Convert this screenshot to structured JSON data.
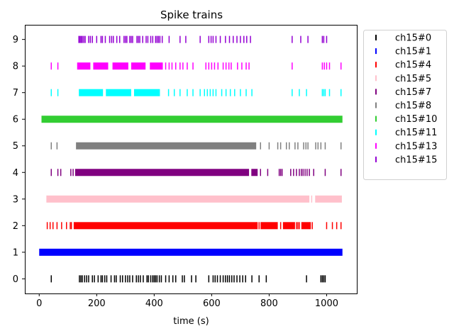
{
  "chart_data": {
    "type": "scatter",
    "title": "Spike trains",
    "xlabel": "time (s)",
    "ylabel": "",
    "xlim": [
      -50,
      1105
    ],
    "ylim": [
      -0.55,
      9.55
    ],
    "xticks": [
      0,
      200,
      400,
      600,
      800,
      1000
    ],
    "yticks": [
      0,
      1,
      2,
      3,
      4,
      5,
      6,
      7,
      8,
      9
    ],
    "grid": false,
    "legend_position": "outside-right",
    "series": [
      {
        "name": "ch15#0",
        "y": 0,
        "color": "#000000",
        "spikes": [
          42,
          140,
          145,
          150,
          158,
          165,
          172,
          185,
          192,
          205,
          215,
          220,
          228,
          235,
          250,
          262,
          268,
          282,
          290,
          300,
          308,
          315,
          325,
          338,
          345,
          352,
          362,
          375,
          380,
          388,
          395,
          400,
          405,
          410,
          418,
          425,
          440,
          452,
          465,
          475,
          498,
          505,
          530,
          545,
          590,
          605,
          612,
          620,
          630,
          640,
          648,
          655,
          662,
          670,
          678,
          688,
          698,
          708,
          718,
          740,
          765,
          790,
          930,
          980,
          985,
          990,
          995
        ]
      },
      {
        "name": "ch15#1",
        "y": 1,
        "color": "#0000ff",
        "spans": [
          [
            0,
            1055
          ]
        ]
      },
      {
        "name": "ch15#4",
        "y": 2,
        "color": "#ff0000",
        "spans": [
          [
            120,
            760
          ],
          [
            770,
            830
          ],
          [
            848,
            890
          ],
          [
            912,
            945
          ]
        ],
        "spikes": [
          28,
          38,
          48,
          62,
          78,
          95,
          108,
          112,
          765,
          840,
          895,
          900,
          905,
          950,
          1000,
          1020,
          1035,
          1050
        ]
      },
      {
        "name": "ch15#5",
        "y": 3,
        "color": "#ffc0cb",
        "spans": [
          [
            25,
            940
          ],
          [
            960,
            1053
          ]
        ],
        "spikes": [
          948
        ]
      },
      {
        "name": "ch15#7",
        "y": 4,
        "color": "#800080",
        "spans": [
          [
            125,
            730
          ],
          [
            738,
            760
          ]
        ],
        "spikes": [
          42,
          65,
          75,
          110,
          118,
          770,
          795,
          835,
          840,
          845,
          875,
          885,
          895,
          905,
          912,
          918,
          925,
          932,
          940,
          955,
          995,
          1050
        ]
      },
      {
        "name": "ch15#8",
        "y": 5,
        "color": "#808080",
        "spans": [
          [
            128,
            755
          ]
        ],
        "spikes": [
          42,
          62,
          770,
          800,
          830,
          840,
          860,
          870,
          890,
          900,
          920,
          928,
          935,
          962,
          970,
          980,
          995,
          1050
        ]
      },
      {
        "name": "ch15#10",
        "y": 6,
        "color": "#32cd32",
        "spans": [
          [
            8,
            1055
          ]
        ]
      },
      {
        "name": "ch15#11",
        "y": 7,
        "color": "#00ffff",
        "spans": [
          [
            138,
            222
          ],
          [
            232,
            320
          ],
          [
            330,
            420
          ]
        ],
        "spikes": [
          42,
          65,
          450,
          470,
          490,
          515,
          535,
          560,
          575,
          585,
          595,
          605,
          615,
          635,
          650,
          665,
          680,
          700,
          720,
          740,
          880,
          905,
          930,
          985,
          990,
          995,
          1010,
          1050
        ]
      },
      {
        "name": "ch15#13",
        "y": 8,
        "color": "#ff00ff",
        "spans": [
          [
            132,
            178
          ],
          [
            188,
            240
          ],
          [
            255,
            310
          ],
          [
            320,
            370
          ],
          [
            385,
            430
          ]
        ],
        "spikes": [
          42,
          65,
          440,
          452,
          462,
          475,
          490,
          500,
          515,
          535,
          580,
          590,
          600,
          610,
          622,
          640,
          650,
          660,
          668,
          690,
          705,
          720,
          730,
          880,
          985,
          992,
          1000,
          1010,
          1050
        ]
      },
      {
        "name": "ch15#15",
        "y": 9,
        "color": "#9400d3",
        "spikes": [
          138,
          142,
          146,
          150,
          155,
          160,
          172,
          178,
          185,
          200,
          215,
          220,
          230,
          245,
          252,
          258,
          270,
          280,
          295,
          300,
          305,
          315,
          320,
          325,
          340,
          345,
          350,
          360,
          372,
          378,
          388,
          395,
          405,
          410,
          415,
          420,
          428,
          452,
          490,
          510,
          560,
          590,
          598,
          605,
          615,
          630,
          648,
          662,
          675,
          688,
          700,
          712,
          722,
          735,
          880,
          910,
          935,
          985,
          990,
          1000
        ]
      }
    ]
  }
}
